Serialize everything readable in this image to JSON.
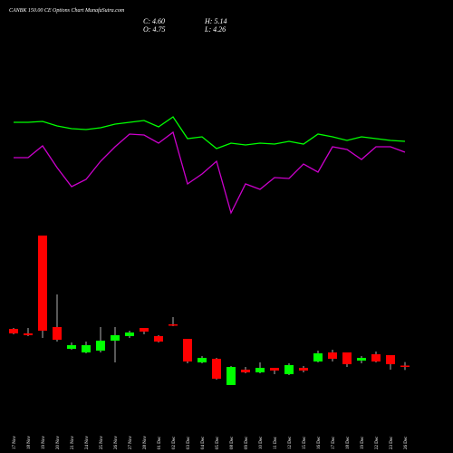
{
  "chart_data": {
    "type": "candlestick",
    "title": "CANBK 150.00 CE Options Chart MunafaSutra.com",
    "ohlc_labels": {
      "close": "C: 4.60",
      "high": "H: 5.14",
      "open": "O: 4.75",
      "low": "L: 4.26"
    },
    "categories": [
      "17 Nov",
      "18 Nov",
      "19 Nov",
      "20 Nov",
      "21 Nov",
      "24 Nov",
      "25 Nov",
      "26 Nov",
      "27 Nov",
      "28 Nov",
      "01 Dec",
      "02 Dec",
      "03 Dec",
      "04 Dec",
      "05 Dec",
      "08 Dec",
      "09 Dec",
      "10 Dec",
      "11 Dec",
      "12 Dec",
      "15 Dec",
      "16 Dec",
      "17 Dec",
      "18 Dec",
      "19 Dec",
      "22 Dec",
      "23 Dec",
      "26 Dec"
    ],
    "open": [
      8.8,
      8.3,
      19.1,
      9.0,
      6.6,
      6.2,
      6.4,
      7.5,
      8.0,
      8.9,
      8.0,
      9.3,
      7.7,
      5.1,
      5.5,
      2.6,
      4.3,
      4.0,
      4.5,
      3.8,
      4.5,
      5.2,
      6.2,
      6.2,
      5.3,
      6.0,
      5.9,
      4.75
    ],
    "high": [
      8.9,
      8.9,
      19.1,
      12.6,
      7.3,
      7.4,
      9.0,
      9.0,
      8.6,
      8.9,
      8.1,
      10.1,
      7.7,
      5.8,
      5.6,
      4.7,
      4.6,
      5.1,
      4.5,
      5.0,
      4.7,
      6.4,
      6.5,
      6.2,
      5.8,
      6.3,
      5.9,
      5.14
    ],
    "low": [
      8.2,
      8.0,
      7.8,
      7.4,
      6.5,
      6.1,
      6.2,
      5.1,
      7.8,
      8.2,
      7.3,
      9.1,
      5.0,
      5.0,
      3.2,
      2.6,
      3.9,
      3.9,
      3.8,
      3.7,
      4.0,
      5.1,
      5.2,
      4.6,
      5.0,
      5.1,
      4.3,
      4.26
    ],
    "close": [
      8.3,
      8.1,
      8.6,
      7.6,
      7.0,
      7.0,
      7.5,
      8.1,
      8.4,
      8.5,
      7.4,
      9.2,
      5.2,
      5.6,
      3.3,
      4.6,
      4.0,
      4.5,
      4.2,
      4.8,
      4.2,
      6.1,
      5.5,
      4.9,
      5.6,
      5.2,
      4.9,
      4.6
    ],
    "up_color": "#00ff00",
    "down_color": "#ff0000",
    "wick_color": "#dddddd",
    "lines": [
      {
        "color": "#00ff00",
        "values": [
          31.6,
          31.6,
          31.7,
          31.2,
          30.9,
          30.8,
          31.0,
          31.4,
          31.6,
          31.8,
          31.1,
          32.2,
          29.8,
          30.0,
          28.7,
          29.3,
          29.1,
          29.3,
          29.2,
          29.5,
          29.2,
          30.3,
          30.0,
          29.6,
          30.0,
          29.8,
          29.6,
          29.5
        ]
      },
      {
        "color": "#cc00cc",
        "values": [
          27.7,
          27.7,
          29.0,
          26.6,
          24.5,
          25.3,
          27.3,
          28.9,
          30.3,
          30.2,
          29.3,
          30.5,
          24.8,
          25.9,
          27.3,
          21.6,
          24.8,
          24.2,
          25.5,
          25.4,
          27.0,
          26.1,
          28.9,
          28.6,
          27.5,
          28.9,
          28.9,
          28.3
        ]
      }
    ],
    "ylim": [
      -4.9,
      45.1
    ]
  }
}
